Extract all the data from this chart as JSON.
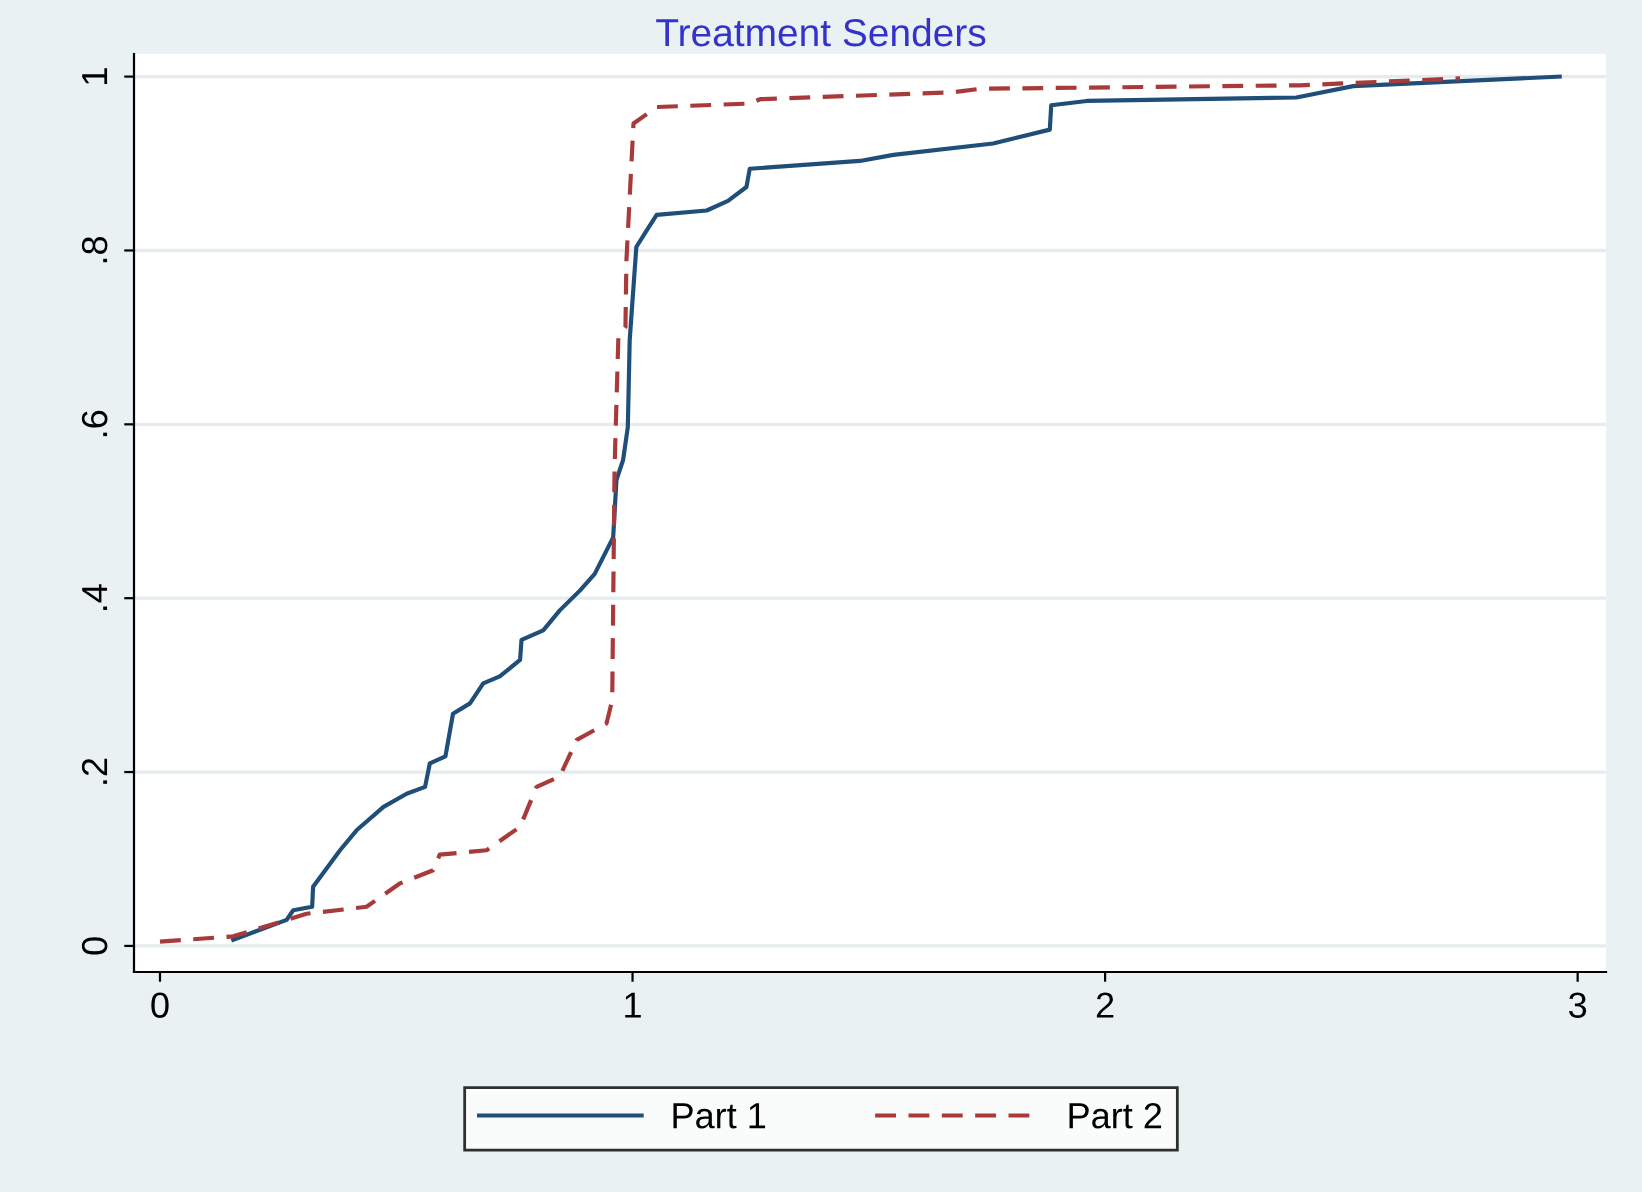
{
  "chart_data": {
    "type": "line",
    "title": "Treatment Senders",
    "series": [
      {
        "name": "Part 1",
        "color": "#1f4e79",
        "line_style": "solid",
        "x": [
          0.155,
          0.268,
          0.282,
          0.322,
          0.324,
          0.381,
          0.416,
          0.473,
          0.522,
          0.561,
          0.571,
          0.604,
          0.62,
          0.656,
          0.684,
          0.719,
          0.762,
          0.765,
          0.811,
          0.846,
          0.889,
          0.92,
          0.959,
          0.966,
          0.98,
          0.99,
          0.994,
          1.008,
          1.03,
          1.051,
          1.157,
          1.202,
          1.241,
          1.248,
          1.481,
          1.552,
          1.763,
          1.883,
          1.886,
          1.961,
          2.405,
          2.525,
          2.962
        ],
        "values": [
          0.007,
          0.03,
          0.041,
          0.045,
          0.068,
          0.11,
          0.133,
          0.16,
          0.175,
          0.183,
          0.21,
          0.218,
          0.267,
          0.279,
          0.302,
          0.31,
          0.329,
          0.352,
          0.363,
          0.386,
          0.409,
          0.428,
          0.47,
          0.536,
          0.559,
          0.597,
          0.697,
          0.804,
          0.823,
          0.841,
          0.846,
          0.857,
          0.873,
          0.894,
          0.903,
          0.91,
          0.923,
          0.939,
          0.967,
          0.972,
          0.976,
          0.989,
          1.0
        ]
      },
      {
        "name": "Part 2",
        "color": "#a83a3a",
        "line_style": "dashed",
        "x": [
          0.0,
          0.155,
          0.31,
          0.437,
          0.508,
          0.578,
          0.592,
          0.691,
          0.762,
          0.797,
          0.846,
          0.882,
          0.945,
          0.957,
          0.962,
          0.97,
          0.985,
          0.987,
          1.002,
          1.051,
          1.248,
          1.27,
          1.678,
          1.735,
          2.412,
          2.751
        ],
        "values": [
          0.005,
          0.011,
          0.037,
          0.045,
          0.072,
          0.087,
          0.105,
          0.11,
          0.137,
          0.183,
          0.195,
          0.237,
          0.256,
          0.283,
          0.551,
          0.7,
          0.712,
          0.788,
          0.946,
          0.965,
          0.969,
          0.974,
          0.982,
          0.986,
          0.99,
          0.998
        ]
      }
    ],
    "xlim": [
      -0.055,
      3.06
    ],
    "xticks": [
      0,
      1,
      2,
      3
    ],
    "ylim": [
      -0.03,
      1.026
    ],
    "yticks": [
      0,
      {
        "value": 0.2,
        "label": ".2"
      },
      {
        "value": 0.4,
        "label": ".4"
      },
      {
        "value": 0.6,
        "label": ".6"
      },
      {
        "value": 0.8,
        "label": ".8"
      },
      1
    ],
    "grid": "y",
    "legend": "bottom"
  }
}
